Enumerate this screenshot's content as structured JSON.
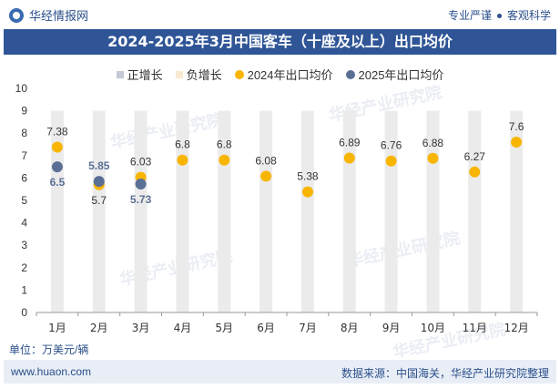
{
  "header": {
    "brand": "华经情报网",
    "tagline_left": "专业严谨",
    "tagline_right": "客观科学"
  },
  "title": "2024-2025年3月中国客车（十座及以上）出口均价",
  "legend": {
    "items": [
      {
        "label": "正增长",
        "color": "#c3cad6",
        "shape": "square"
      },
      {
        "label": "负增长",
        "color": "#f7ead0",
        "shape": "square"
      },
      {
        "label": "2024年出口均价",
        "color": "#f7b500",
        "shape": "circle"
      },
      {
        "label": "2025年出口均价",
        "color": "#5b6f95",
        "shape": "circle"
      }
    ]
  },
  "unit": "单位：万美元/辆",
  "footer": {
    "website": "www.huaon.com",
    "source": "数据来源：中国海关，华经产业研究院整理"
  },
  "watermark": "华经产业研究院",
  "chart_data": {
    "type": "scatter",
    "categories": [
      "1月",
      "2月",
      "3月",
      "4月",
      "5月",
      "6月",
      "7月",
      "8月",
      "9月",
      "10月",
      "11月",
      "12月"
    ],
    "ylim": [
      0,
      10
    ],
    "yticks": [
      0,
      1,
      2,
      3,
      4,
      5,
      6,
      7,
      8,
      9,
      10
    ],
    "series": [
      {
        "name": "2024年出口均价",
        "color": "#f7b500",
        "values": [
          7.38,
          5.7,
          6.03,
          6.8,
          6.8,
          6.08,
          5.38,
          6.89,
          6.76,
          6.88,
          6.27,
          7.6
        ]
      },
      {
        "name": "2025年出口均价",
        "color": "#5b6f95",
        "values": [
          6.5,
          5.85,
          5.73
        ]
      }
    ],
    "background_bars_color": "#ebebeb",
    "grid": false,
    "legend_position": "top"
  }
}
